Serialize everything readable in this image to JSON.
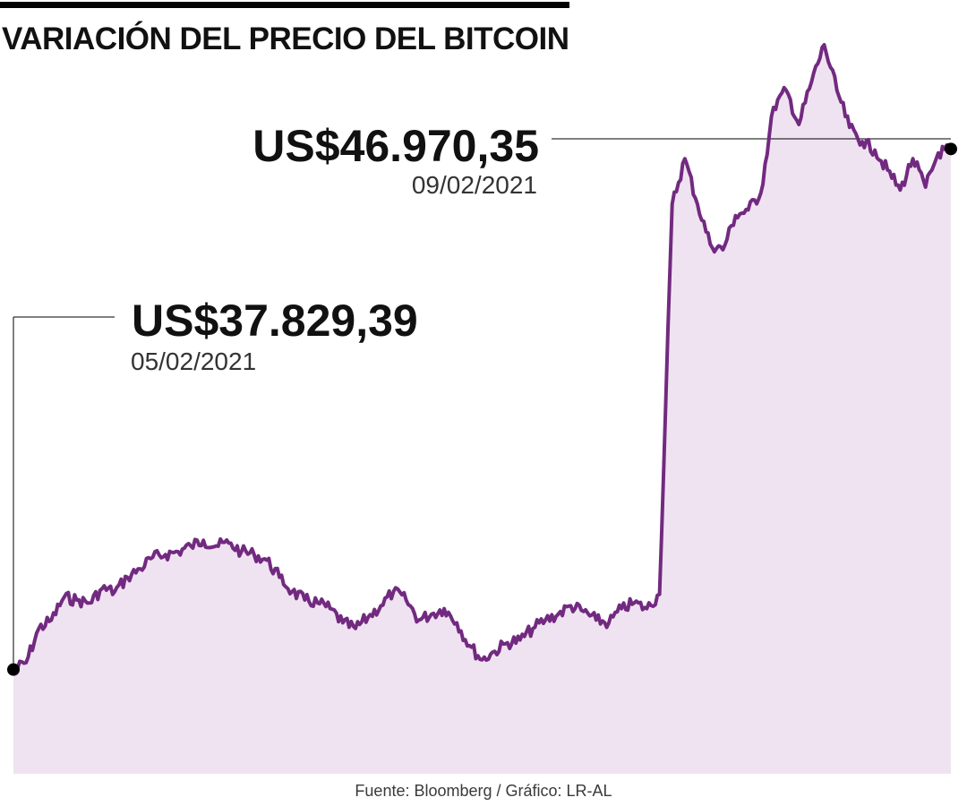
{
  "title": "VARIACIÓN DEL PRECIO DEL BITCOIN",
  "source": "Fuente: Bloomberg / Gráfico: LR-AL",
  "colors": {
    "line": "#722a80",
    "fill": "#f0e3f1",
    "text": "#111111",
    "leader": "#000000"
  },
  "chart_data": {
    "type": "area",
    "title": "VARIACIÓN DEL PRECIO DEL BITCOIN",
    "xlabel": "",
    "ylabel": "",
    "grid": false,
    "start": {
      "label": "US$37.829,39",
      "date": "05/02/2021",
      "value": 37829.39
    },
    "end": {
      "label": "US$46.970,35",
      "date": "09/02/2021",
      "value": 46970.35
    },
    "ylim": [
      36000,
      48800
    ],
    "values": [
      37829,
      37950,
      38550,
      38700,
      39100,
      39050,
      39000,
      39250,
      39200,
      39450,
      39600,
      39800,
      39850,
      39900,
      40000,
      40100,
      40000,
      40050,
      39900,
      39850,
      39750,
      39450,
      39200,
      39050,
      39000,
      38900,
      38650,
      38550,
      38750,
      38950,
      39200,
      39050,
      38700,
      38800,
      38900,
      38650,
      38250,
      38000,
      38150,
      38300,
      38350,
      38550,
      38700,
      38800,
      38950,
      38850,
      38700,
      38650,
      38900,
      39000,
      38900,
      39150,
      46000,
      46800,
      46000,
      45300,
      45200,
      45800,
      45900,
      46200,
      47700,
      48000,
      47400,
      48150,
      48800,
      48000,
      47350,
      47100,
      46950,
      46600,
      46250,
      46800,
      46300,
      46900,
      46970
    ]
  }
}
